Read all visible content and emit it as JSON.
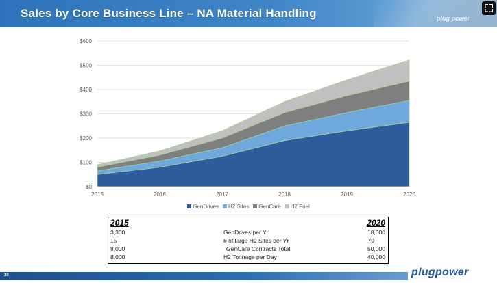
{
  "slide": {
    "title": "Sales by Core Business Line – NA Material Handling",
    "page_number": "30",
    "brand_small": "plug power",
    "brand_logo": "plugpower"
  },
  "chart_data": {
    "type": "area",
    "stacked": true,
    "x": [
      "2015",
      "2016",
      "2017",
      "2018",
      "2019",
      "2020"
    ],
    "ylim": [
      0,
      600
    ],
    "yticks": [
      "$0",
      "$100",
      "$200",
      "$300",
      "$400",
      "$500",
      "$600"
    ],
    "series": [
      {
        "name": "GenDrives",
        "color": "#2e5d9e",
        "values": [
          50,
          80,
          125,
          190,
          230,
          265
        ]
      },
      {
        "name": "H2 Sites",
        "color": "#6fa8dc",
        "values": [
          15,
          25,
          35,
          60,
          75,
          90
        ]
      },
      {
        "name": "GenCare",
        "color": "#7f7f7f",
        "values": [
          15,
          25,
          40,
          55,
          70,
          80
        ]
      },
      {
        "name": "H2 Fuel",
        "color": "#c0c0c0",
        "values": [
          10,
          17,
          30,
          45,
          65,
          87
        ]
      }
    ],
    "grid": true,
    "legend": "bottom"
  },
  "table": {
    "col_left_header": "2015",
    "col_right_header": "2020",
    "rows": [
      {
        "v2015": "3,300",
        "label": "GenDrives per Yr",
        "v2020": "18,000"
      },
      {
        "v2015": "15",
        "label": "# of large H2 Sites per Yr",
        "v2020": "70"
      },
      {
        "v2015": "8,000",
        "label": "GenCare Contracts Total",
        "v2020": "50,000"
      },
      {
        "v2015": "8,000",
        "label": "H2 Tonnage per Day",
        "v2020": "40,000"
      }
    ]
  }
}
